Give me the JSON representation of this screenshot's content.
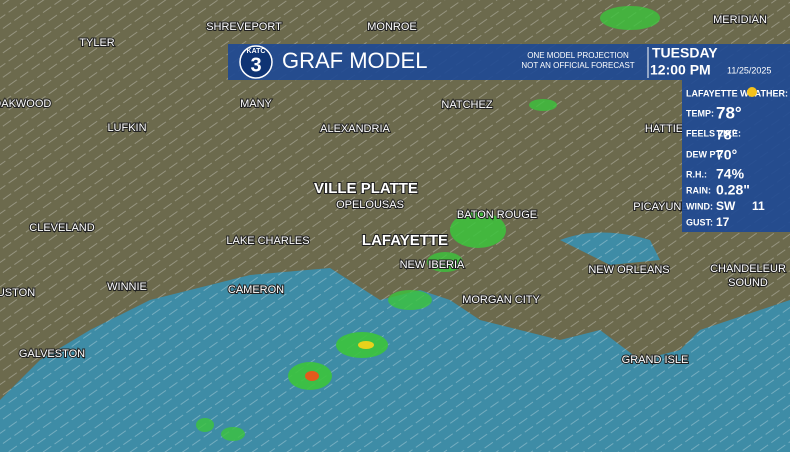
{
  "header": {
    "station": "KATC",
    "channel": "3",
    "title": "GRAF MODEL",
    "note_line1": "ONE MODEL PROJECTION",
    "note_line2": "NOT AN OFFICIAL FORECAST",
    "day": "TUESDAY",
    "time": "12:00 PM",
    "date": "11/25/2025"
  },
  "weather": {
    "place": "LAFAYETTE WEATHER:",
    "rows": [
      {
        "label": "TEMP:",
        "value": "78°"
      },
      {
        "label": "FEELS LIKE:",
        "value": "78°"
      },
      {
        "label": "DEW PT:",
        "value": "70°"
      },
      {
        "label": "R.H.:",
        "value": "74%"
      },
      {
        "label": "RAIN:",
        "value": "0.28\""
      },
      {
        "label": "WIND:",
        "value": "SW",
        "extra": "11"
      },
      {
        "label": "GUST:",
        "value": "17"
      }
    ]
  },
  "cities": [
    "SHREVEPORT",
    "MONROE",
    "MERIDIAN",
    "TYLER",
    "OAKWOOD",
    "MANY",
    "NATCHEZ",
    "HATTIE",
    "LUFKIN",
    "ALEXANDRIA",
    "VILLE PLATTE",
    "OPELOUSAS",
    "BATON ROUGE",
    "PICAYUNE",
    "CLEVELAND",
    "LAKE CHARLES",
    "LAFAYETTE",
    "NEW IBERIA",
    "NEW ORLEANS",
    "CHANDELEUR",
    "SOUND",
    "WINNIE",
    "CAMERON",
    "USTON",
    "MORGAN CITY",
    "GALVESTON",
    "GRAND ISLE"
  ]
}
